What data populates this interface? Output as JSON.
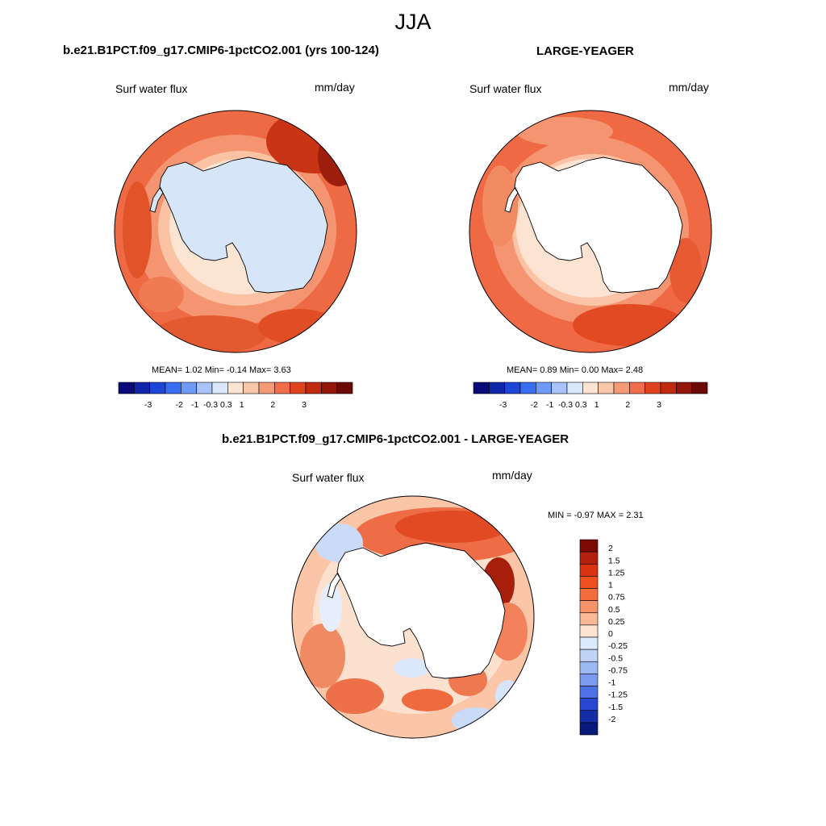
{
  "season": "JJA",
  "panels": [
    {
      "title": "b.e21.B1PCT.f09_g17.CMIP6-1pctCO2.001 (yrs 100-124)",
      "variable": "Surf water flux",
      "units": "mm/day",
      "stats": "MEAN=   1.02  Min=  -0.14  Max=   3.63",
      "land_filled": true
    },
    {
      "title": "LARGE-YEAGER",
      "variable": "Surf water flux",
      "units": "mm/day",
      "stats": "MEAN=   0.89  Min=   0.00  Max=   2.48",
      "land_filled": false
    },
    {
      "title": "b.e21.B1PCT.f09_g17.CMIP6-1pctCO2.001 - LARGE-YEAGER",
      "variable": "Surf water flux",
      "units": "mm/day",
      "stats": "MIN =  -0.97 MAX =   2.31",
      "land_filled": false
    }
  ],
  "colorbar_top": {
    "ticks": [
      "-3",
      "-2",
      "-1",
      "-0.3",
      "0.3",
      "1",
      "2",
      "3"
    ],
    "colors": [
      "#0a0a78",
      "#1025a8",
      "#1d45d6",
      "#3a6ef0",
      "#6f9af5",
      "#a7c3f9",
      "#d9e8fc",
      "#fde4d2",
      "#fbc7a9",
      "#f59a76",
      "#ef6d48",
      "#e0441f",
      "#c02a0f",
      "#92160a",
      "#6b0a05"
    ]
  },
  "colorbar_diff": {
    "ticks": [
      "2",
      "1.5",
      "1.25",
      "1",
      "0.75",
      "0.5",
      "0.25",
      "0",
      "-0.25",
      "-0.5",
      "-0.75",
      "-1",
      "-1.25",
      "-1.5",
      "-2"
    ],
    "colors": [
      "#7b0a05",
      "#b3200d",
      "#d9340f",
      "#f0501f",
      "#f46c3c",
      "#f7926a",
      "#fab896",
      "#fde3d0",
      "#dde9fc",
      "#c1d4f8",
      "#9db9f3",
      "#7a9bef",
      "#4e72e6",
      "#2747d2",
      "#142ea6",
      "#0a1a7a"
    ]
  }
}
